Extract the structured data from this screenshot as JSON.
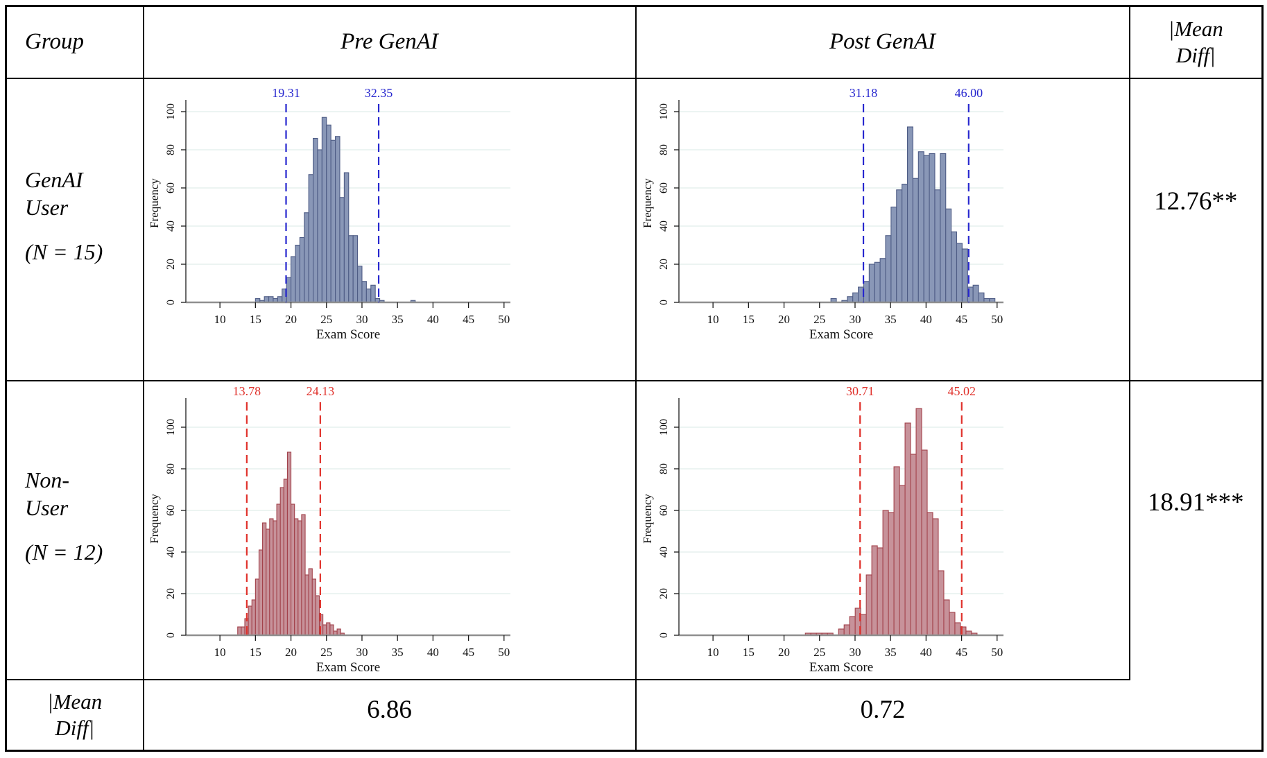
{
  "style": {
    "grid_color": "#e6f0ee",
    "axis_color": "#1a1a1a",
    "baseline_color": "#8f8f8f",
    "tick_color": "#111111",
    "table_border_color": "#000000",
    "blue_accent": "#2727cf",
    "red_accent": "#e0312b"
  },
  "table": {
    "header": {
      "group": "Group",
      "pre": "Pre GenAI",
      "post": "Post GenAI",
      "mean_diff_line1": "|Mean",
      "mean_diff_line2": "Diff|"
    },
    "row_user": {
      "label_line1": "GenAI",
      "label_line2": "User",
      "label_line3": "(N = 15)",
      "mean_diff": "12.76**"
    },
    "row_nonuser": {
      "label_line1": "Non-",
      "label_line2": "User",
      "label_line3": "(N = 12)",
      "mean_diff": "18.91***"
    },
    "footer": {
      "label_line1": "|Mean",
      "label_line2": "Diff|",
      "pre_value": "6.86",
      "post_value": "0.72"
    }
  },
  "chart_data": [
    {
      "id": "histogram-pre-genai-user",
      "type": "bar",
      "group": "GenAI User (N = 15)",
      "period": "Pre GenAI",
      "xlabel": "Exam Score",
      "ylabel": "Frequency",
      "xlim": [
        5.2,
        50.9
      ],
      "ylim": [
        0,
        104
      ],
      "xticks": [
        10,
        15,
        20,
        25,
        30,
        35,
        40,
        45,
        50
      ],
      "yticks": [
        0,
        20,
        40,
        60,
        80,
        100
      ],
      "grid": true,
      "legend": "none",
      "bin_start": 15.0,
      "bin_width": 0.625,
      "values": [
        2,
        1,
        3,
        3,
        2,
        3,
        7,
        13,
        24,
        30,
        34,
        47,
        67,
        86,
        80,
        97,
        93,
        85,
        87,
        55,
        68,
        35,
        35,
        19,
        11,
        7,
        9,
        2,
        1,
        0,
        0,
        0,
        0,
        0,
        0,
        1
      ],
      "ref_lines": [
        {
          "x": 19.31,
          "label": "19.31"
        },
        {
          "x": 32.35,
          "label": "32.35"
        }
      ],
      "colors": {
        "fill": "#8997b7",
        "stroke": "#4e5c85",
        "line": "#2727cf"
      }
    },
    {
      "id": "histogram-post-genai-user",
      "type": "bar",
      "group": "GenAI User (N = 15)",
      "period": "Post GenAI",
      "xlabel": "Exam Score",
      "ylabel": "Frequency",
      "xlim": [
        5.2,
        50.9
      ],
      "ylim": [
        0,
        104
      ],
      "xticks": [
        10,
        15,
        20,
        25,
        30,
        35,
        40,
        45,
        50
      ],
      "yticks": [
        0,
        20,
        40,
        60,
        80,
        100
      ],
      "grid": true,
      "legend": "none",
      "bin_start": 26.6,
      "bin_width": 0.77,
      "values": [
        2,
        0,
        1,
        3,
        5,
        8,
        11,
        20,
        21,
        23,
        35,
        50,
        59,
        62,
        92,
        65,
        79,
        77,
        78,
        59,
        78,
        49,
        37,
        31,
        28,
        8,
        9,
        5,
        2,
        2
      ],
      "ref_lines": [
        {
          "x": 31.18,
          "label": "31.18"
        },
        {
          "x": 46.0,
          "label": "46.00"
        }
      ],
      "colors": {
        "fill": "#8997b7",
        "stroke": "#4e5c85",
        "line": "#2727cf"
      }
    },
    {
      "id": "histogram-pre-nonuser",
      "type": "bar",
      "group": "Non-User (N = 12)",
      "period": "Pre GenAI",
      "xlabel": "Exam Score",
      "ylabel": "Frequency",
      "xlim": [
        5.2,
        50.9
      ],
      "ylim": [
        0,
        112
      ],
      "xticks": [
        10,
        15,
        20,
        25,
        30,
        35,
        40,
        45,
        50
      ],
      "yticks": [
        0,
        20,
        40,
        60,
        80,
        100
      ],
      "grid": true,
      "legend": "none",
      "bin_start": 12.5,
      "bin_width": 0.5,
      "values": [
        4,
        4,
        8,
        14,
        17,
        27,
        41,
        54,
        51,
        56,
        55,
        63,
        71,
        75,
        88,
        63,
        56,
        55,
        58,
        29,
        32,
        27,
        19,
        10,
        5,
        6,
        5,
        2,
        3,
        1
      ],
      "ref_lines": [
        {
          "x": 13.78,
          "label": "13.78"
        },
        {
          "x": 24.13,
          "label": "24.13"
        }
      ],
      "colors": {
        "fill": "#c7929a",
        "stroke": "#a2424b",
        "line": "#e0312b"
      }
    },
    {
      "id": "histogram-post-nonuser",
      "type": "bar",
      "group": "Non-User (N = 12)",
      "period": "Post GenAI",
      "xlabel": "Exam Score",
      "ylabel": "Frequency",
      "xlim": [
        5.2,
        50.9
      ],
      "ylim": [
        0,
        112
      ],
      "xticks": [
        10,
        15,
        20,
        25,
        30,
        35,
        40,
        45,
        50
      ],
      "yticks": [
        0,
        20,
        40,
        60,
        80,
        100
      ],
      "grid": true,
      "legend": "none",
      "bin_start": 23.0,
      "bin_width": 0.78,
      "values": [
        1,
        1,
        1,
        1,
        1,
        0,
        3,
        5,
        9,
        13,
        10,
        29,
        43,
        42,
        60,
        59,
        81,
        72,
        102,
        87,
        109,
        89,
        59,
        56,
        31,
        17,
        11,
        6,
        4,
        2,
        1
      ],
      "ref_lines": [
        {
          "x": 30.71,
          "label": "30.71"
        },
        {
          "x": 45.02,
          "label": "45.02"
        }
      ],
      "colors": {
        "fill": "#c7929a",
        "stroke": "#a2424b",
        "line": "#e0312b"
      }
    }
  ]
}
